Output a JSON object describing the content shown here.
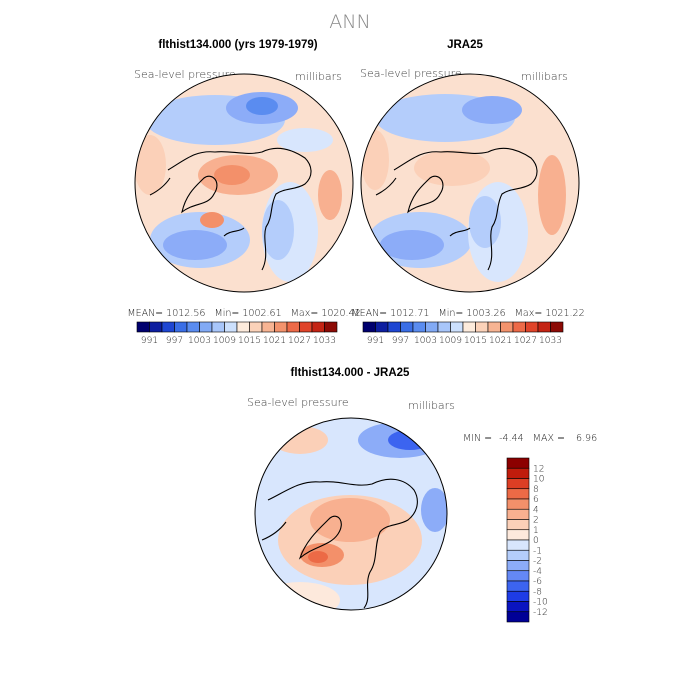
{
  "page_title": "ANN",
  "palette": {
    "mean_field": [
      "#00006e",
      "#0d1ea0",
      "#1e46d2",
      "#3a6ee6",
      "#5a8cf0",
      "#82aaf5",
      "#a8c6fa",
      "#cce0fd",
      "#fdebdc",
      "#fbd2b9",
      "#f7b493",
      "#f3936d",
      "#ed6a48",
      "#e0442a",
      "#c42414",
      "#8c0a05"
    ],
    "difference": [
      "#000096",
      "#0a14c0",
      "#1e3ce6",
      "#3c64f0",
      "#6488f5",
      "#8cacf8",
      "#b4cdfb",
      "#d8e6fd",
      "#fde9dc",
      "#fbd0b8",
      "#f8b090",
      "#f3906a",
      "#ec6a46",
      "#dc3e24",
      "#c01c0c",
      "#8c0000"
    ]
  },
  "chart_data": [
    {
      "type": "heatmap",
      "projection": "polar-stereographic",
      "title": "flthist134.000 (yrs 1979-1979)",
      "field_label": "Sea-level pressure",
      "units": "millibars",
      "stats": {
        "mean_label": "MEAN=",
        "mean": "1012.56",
        "min_label": "Min=",
        "min": "1002.61",
        "max_label": "Max=",
        "max": "1020.42"
      },
      "colorbar_ticks": [
        "991",
        "997",
        "1003",
        "1009",
        "1015",
        "1021",
        "1027",
        "1033"
      ],
      "colorbar_bins": 16
    },
    {
      "type": "heatmap",
      "projection": "polar-stereographic",
      "title": "JRA25",
      "field_label": "Sea-level pressure",
      "units": "millibars",
      "stats": {
        "mean_label": "MEAN=",
        "mean": "1012.71",
        "min_label": "Min=",
        "min": "1003.26",
        "max_label": "Max=",
        "max": "1021.22"
      },
      "colorbar_ticks": [
        "991",
        "997",
        "1003",
        "1009",
        "1015",
        "1021",
        "1027",
        "1033"
      ],
      "colorbar_bins": 16
    },
    {
      "type": "heatmap",
      "projection": "polar-stereographic",
      "title": "flthist134.000 - JRA25",
      "field_label": "Sea-level pressure",
      "units": "millibars",
      "stats": {
        "min_label": "MIN =",
        "min": "-4.44",
        "max_label": "MAX =",
        "max": "6.96"
      },
      "colorbar_ticks": [
        "12",
        "10",
        "8",
        "6",
        "4",
        "2",
        "1",
        "0",
        "-1",
        "-2",
        "-4",
        "-6",
        "-8",
        "-10",
        "-12"
      ],
      "colorbar_bins": 16
    }
  ]
}
